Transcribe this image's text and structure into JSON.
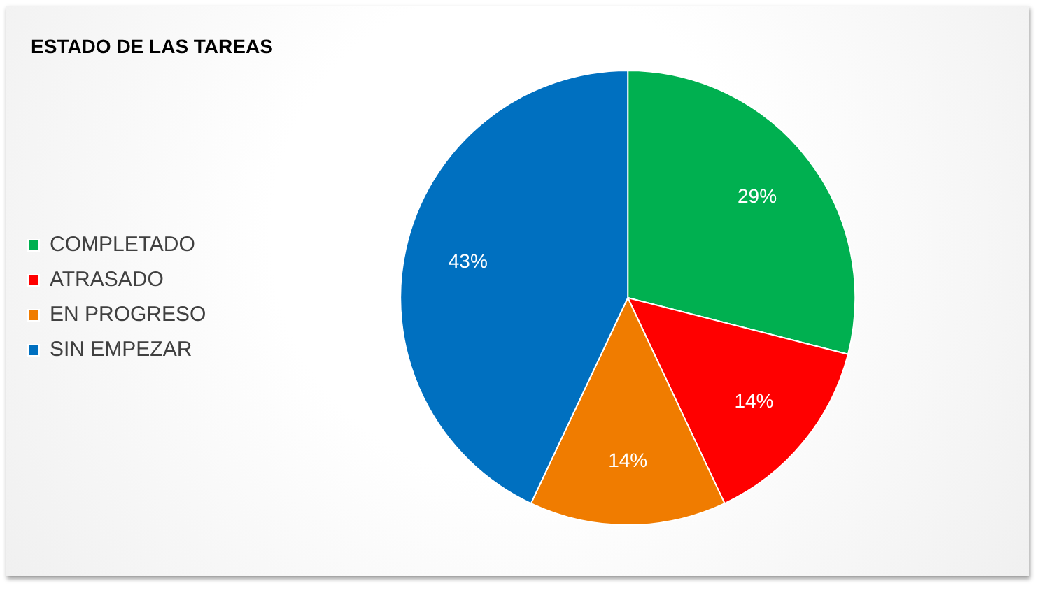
{
  "chart_data": {
    "type": "pie",
    "title": "ESTADO DE LAS TAREAS",
    "categories": [
      "COMPLETADO",
      "ATRASADO",
      "EN PROGRESO",
      "SIN EMPEZAR"
    ],
    "values": [
      29,
      14,
      14,
      43
    ],
    "colors": [
      "#00b050",
      "#ff0000",
      "#f07c00",
      "#0070c0"
    ],
    "value_labels": [
      "29%",
      "14%",
      "14%",
      "43%"
    ],
    "legend": "left"
  }
}
